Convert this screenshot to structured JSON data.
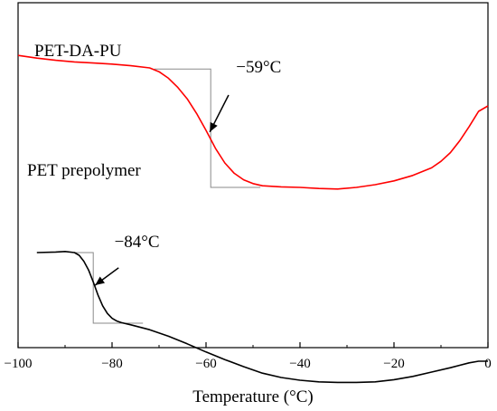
{
  "chart_data": {
    "type": "line",
    "title": "",
    "xlabel": "Temperature (°C)",
    "ylabel": "",
    "xlim": [
      -100,
      0
    ],
    "xticks": [
      -100,
      -80,
      -60,
      -40,
      -20,
      0
    ],
    "y_axis_shown": false,
    "grid": false,
    "legend": "none",
    "series": [
      {
        "name": "PET-DA-PU",
        "color": "#ff0000",
        "label_position": "top-left",
        "x": [
          -100,
          -96,
          -92,
          -88,
          -84,
          -80,
          -76,
          -72,
          -70,
          -68,
          -66,
          -64,
          -62,
          -60,
          -58,
          -56,
          -54,
          -52,
          -50,
          -48,
          -46,
          -44,
          -40,
          -36,
          -32,
          -28,
          -24,
          -20,
          -16,
          -12,
          -10,
          -8,
          -6,
          -4,
          -2,
          0
        ],
        "y": [
          0.93,
          0.88,
          0.84,
          0.81,
          0.79,
          0.77,
          0.74,
          0.7,
          0.63,
          0.51,
          0.34,
          0.13,
          -0.14,
          -0.45,
          -0.78,
          -1.05,
          -1.24,
          -1.36,
          -1.43,
          -1.47,
          -1.48,
          -1.49,
          -1.5,
          -1.52,
          -1.53,
          -1.5,
          -1.45,
          -1.38,
          -1.28,
          -1.14,
          -1.02,
          -0.86,
          -0.64,
          -0.38,
          -0.1,
          0.0
        ]
      },
      {
        "name": "PET prepolymer",
        "color": "#000000",
        "label_position": "left",
        "x": [
          -96,
          -92,
          -90,
          -88,
          -87,
          -86,
          -85,
          -84,
          -83,
          -82,
          -81,
          -80,
          -79,
          -78,
          -76,
          -72,
          -68,
          -64,
          -60,
          -56,
          -52,
          -48,
          -44,
          -40,
          -36,
          -32,
          -28,
          -24,
          -20,
          -16,
          -12,
          -8,
          -4,
          -2,
          0
        ],
        "y": [
          -2.7,
          -2.69,
          -2.68,
          -2.7,
          -2.75,
          -2.86,
          -3.02,
          -3.24,
          -3.48,
          -3.68,
          -3.82,
          -3.91,
          -3.96,
          -3.99,
          -4.03,
          -4.12,
          -4.24,
          -4.38,
          -4.53,
          -4.67,
          -4.8,
          -4.92,
          -5.0,
          -5.05,
          -5.08,
          -5.09,
          -5.09,
          -5.08,
          -5.04,
          -4.98,
          -4.9,
          -4.82,
          -4.73,
          -4.7,
          -4.7
        ]
      }
    ],
    "annotations": [
      {
        "text": "−59°C",
        "tg": -59,
        "tangent_x": [
          -71,
          -59
        ],
        "tangent_y": [
          0.68,
          -1.5
        ],
        "text_x": -53.6,
        "text_y": 0.62,
        "arrow_from": [
          -55.2,
          0.2
        ],
        "arrow_to": [
          -59.2,
          -0.48
        ]
      },
      {
        "text": "−84°C",
        "tg": -84,
        "tangent_x": [
          -88,
          -84
        ],
        "tangent_y": [
          -2.7,
          -4.0
        ],
        "text_x": -79.5,
        "text_y": -2.6,
        "arrow_from": [
          -78.6,
          -2.98
        ],
        "arrow_to": [
          -83.6,
          -3.3
        ]
      }
    ]
  }
}
